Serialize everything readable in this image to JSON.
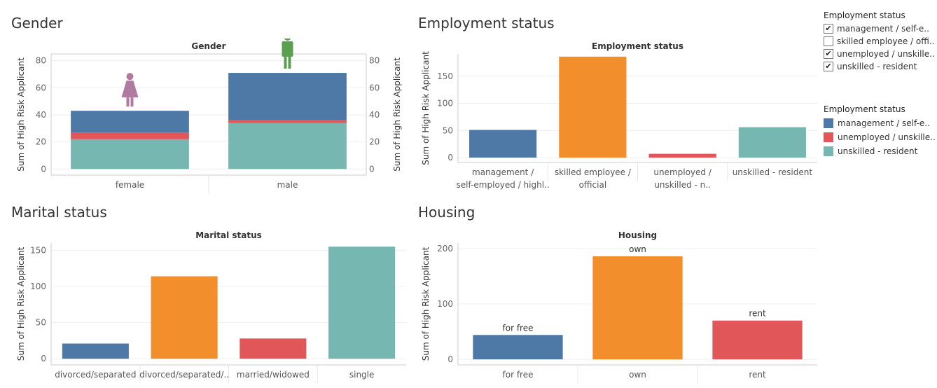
{
  "titles": {
    "gender": "Gender",
    "employment": "Employment status",
    "marital": "Marital status",
    "housing": "Housing"
  },
  "filter_legend": {
    "title": "Employment status",
    "items": [
      {
        "label": "management / self-e..",
        "checked": true
      },
      {
        "label": "skilled employee / offi..",
        "checked": false
      },
      {
        "label": "unemployed / unskille..",
        "checked": true
      },
      {
        "label": "unskilled - resident",
        "checked": true
      }
    ]
  },
  "color_legend": {
    "title": "Employment status",
    "items": [
      {
        "label": "management / self-e..",
        "color": "#4e79a7"
      },
      {
        "label": "unemployed / unskille..",
        "color": "#e15759"
      },
      {
        "label": "unskilled - resident",
        "color": "#76b7b2"
      }
    ]
  },
  "chart_data": [
    {
      "id": "gender",
      "type": "bar",
      "stacked": true,
      "title": "Gender",
      "ylabel": "Sum of High Risk Applicant",
      "ylabel_right": "Sum of High Risk Applicant",
      "categories": [
        "female",
        "male"
      ],
      "yticks": [
        0,
        20,
        40,
        60,
        80
      ],
      "ylim": [
        -4.5,
        85
      ],
      "icons": [
        "female-person-icon",
        "male-person-icon"
      ],
      "icon_colors": [
        "#b07aa1",
        "#59a14f"
      ],
      "series": [
        {
          "name": "unskilled - resident",
          "color": "#76b7b2",
          "values": [
            22,
            34
          ]
        },
        {
          "name": "unemployed / unskilled - non-resident",
          "color": "#e15759",
          "values": [
            5,
            2
          ]
        },
        {
          "name": "management / self-employed / highly qualified",
          "color": "#4e79a7",
          "values": [
            16,
            35
          ]
        }
      ]
    },
    {
      "id": "employment",
      "type": "bar",
      "title": "Employment status",
      "ylabel": "Sum of High Risk Applicant",
      "categories": [
        [
          "management /",
          "self-employed / highl.."
        ],
        [
          "skilled employee /",
          "official"
        ],
        [
          "unemployed /",
          "unskilled - n.."
        ],
        [
          "unskilled - resident"
        ]
      ],
      "values": [
        51,
        186,
        7,
        56
      ],
      "colors": [
        "#4e79a7",
        "#f28e2b",
        "#e15759",
        "#76b7b2"
      ],
      "yticks": [
        0,
        50,
        100,
        150
      ],
      "ylim": [
        -9,
        191
      ]
    },
    {
      "id": "marital",
      "type": "bar",
      "title": "Marital status",
      "ylabel": "Sum of High Risk Applicant",
      "categories": [
        [
          "divorced/separated"
        ],
        [
          "divorced/separated/.."
        ],
        [
          "married/widowed"
        ],
        [
          "single"
        ]
      ],
      "values": [
        21,
        114,
        28,
        155
      ],
      "colors": [
        "#4e79a7",
        "#f28e2b",
        "#e15759",
        "#76b7b2"
      ],
      "yticks": [
        0,
        50,
        100,
        150
      ],
      "ylim": [
        -8.5,
        160
      ]
    },
    {
      "id": "housing",
      "type": "bar",
      "title": "Housing",
      "ylabel": "Sum of High Risk Applicant",
      "categories": [
        [
          "for free"
        ],
        [
          "own"
        ],
        [
          "rent"
        ]
      ],
      "values": [
        44,
        186,
        70
      ],
      "data_labels": [
        "for free",
        "own",
        "rent"
      ],
      "colors": [
        "#4e79a7",
        "#f28e2b",
        "#e15759"
      ],
      "yticks": [
        0,
        100,
        200
      ],
      "ylim": [
        -10,
        210
      ]
    }
  ]
}
